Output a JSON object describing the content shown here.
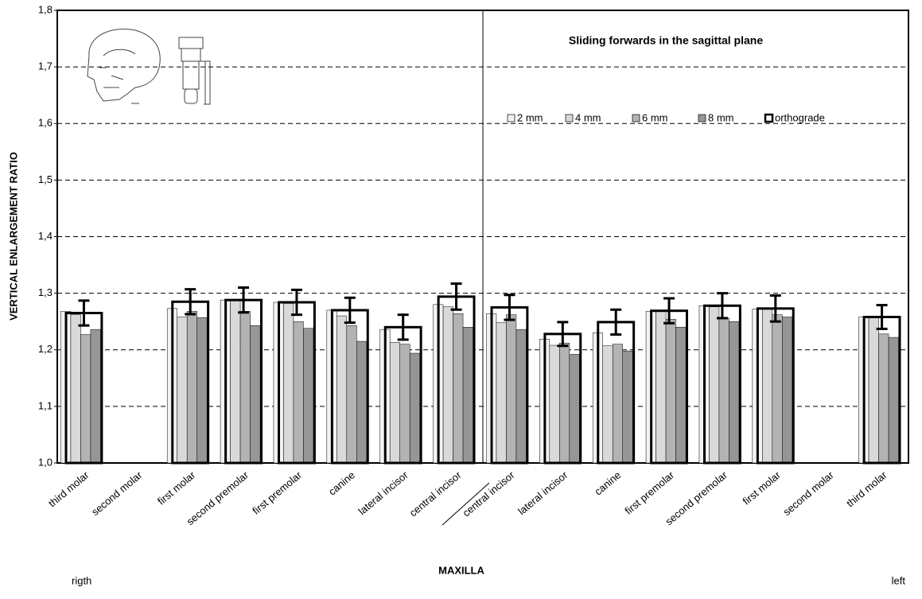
{
  "chart_data": {
    "type": "bar",
    "title": "Sliding forwards in the sagittal plane",
    "x_label": "MAXILLA",
    "y_label": "VERTICAL ENLARGEMENT RATIO",
    "annotations": [
      "rigth",
      "left"
    ],
    "categories": [
      "third molar",
      "second molar",
      "first molar",
      "second premolar",
      "first premolar",
      "canine",
      "lateral incisor",
      "central incisor",
      "central incisor",
      "lateral incisor",
      "canine",
      "first premolar",
      "second premolar",
      "first molar",
      "second molar",
      "third molar"
    ],
    "series": [
      {
        "name": "2 mm",
        "color": "#f2f2f2",
        "values": [
          1.268,
          null,
          1.273,
          1.288,
          1.284,
          1.27,
          1.236,
          1.28,
          1.264,
          1.219,
          1.23,
          1.268,
          1.278,
          1.272,
          null,
          1.258
        ]
      },
      {
        "name": "4 mm",
        "color": "#d9d9d9",
        "values": [
          1.262,
          null,
          1.258,
          1.287,
          1.282,
          1.26,
          1.213,
          1.276,
          1.248,
          1.208,
          1.207,
          1.268,
          1.276,
          1.272,
          null,
          1.258
        ]
      },
      {
        "name": "6 mm",
        "color": "#b3b3b3",
        "values": [
          1.227,
          null,
          1.268,
          1.268,
          1.25,
          1.243,
          1.21,
          1.264,
          1.262,
          1.212,
          1.21,
          1.254,
          1.256,
          1.262,
          null,
          1.228
        ]
      },
      {
        "name": "8 mm",
        "color": "#969696",
        "values": [
          1.236,
          null,
          1.257,
          1.243,
          1.238,
          1.215,
          1.194,
          1.24,
          1.236,
          1.192,
          1.198,
          1.24,
          1.25,
          1.258,
          null,
          1.222
        ]
      },
      {
        "name": "orthograde",
        "color": "#000000",
        "outline": true,
        "values": [
          1.265,
          null,
          1.285,
          1.288,
          1.284,
          1.27,
          1.24,
          1.294,
          1.275,
          1.228,
          1.249,
          1.269,
          1.278,
          1.273,
          null,
          1.258
        ],
        "errors": [
          0.022,
          null,
          0.022,
          0.022,
          0.022,
          0.022,
          0.022,
          0.023,
          0.022,
          0.021,
          0.022,
          0.022,
          0.022,
          0.023,
          null,
          0.021
        ]
      }
    ],
    "ylim": [
      1.0,
      1.8
    ],
    "yticks": [
      {
        "value": 1.0,
        "label": "1,0"
      },
      {
        "value": 1.1,
        "label": "1,1"
      },
      {
        "value": 1.2,
        "label": "1,2"
      },
      {
        "value": 1.3,
        "label": "1,3"
      },
      {
        "value": 1.4,
        "label": "1,4"
      },
      {
        "value": 1.5,
        "label": "1,5"
      },
      {
        "value": 1.6,
        "label": "1,6"
      },
      {
        "value": 1.7,
        "label": "1,7"
      },
      {
        "value": 1.8,
        "label": "1,8"
      }
    ],
    "grid": true
  }
}
